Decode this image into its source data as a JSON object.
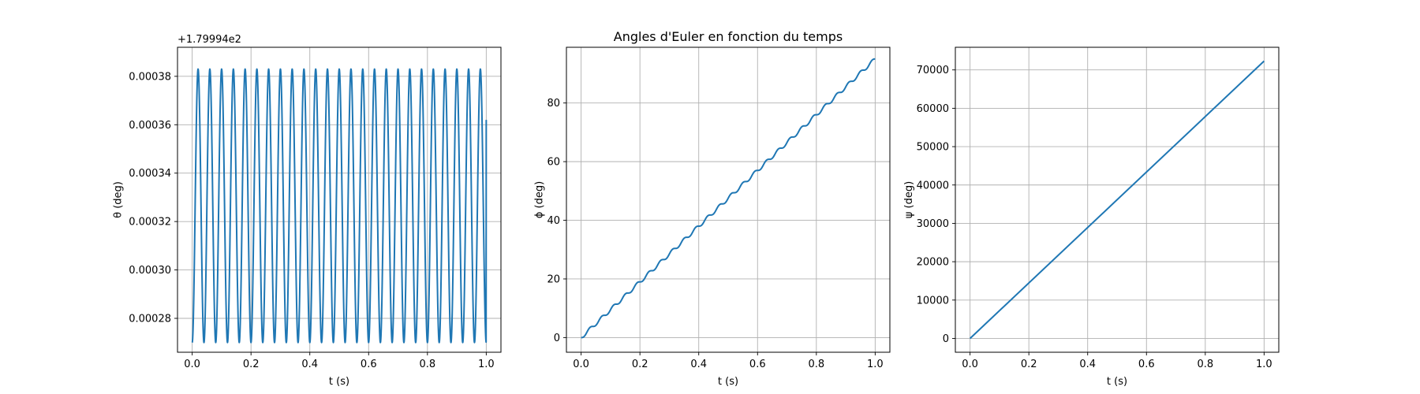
{
  "figure": {
    "title": "Angles d'Euler en fonction du temps",
    "line_color": "#1f77b4"
  },
  "chart_data": [
    {
      "type": "line",
      "title": "",
      "xlabel": "t (s)",
      "ylabel": "θ (deg)",
      "offset_text": "+1.79994e2",
      "xlim": [
        -0.05,
        1.05
      ],
      "ylim": [
        0.000266,
        0.000392
      ],
      "xticks": [
        0.0,
        0.2,
        0.4,
        0.6,
        0.8,
        1.0
      ],
      "xtick_labels": [
        "0.0",
        "0.2",
        "0.4",
        "0.6",
        "0.8",
        "1.0"
      ],
      "yticks": [
        0.00028,
        0.0003,
        0.00032,
        0.00034,
        0.00036,
        0.00038
      ],
      "ytick_labels": [
        "0.00028",
        "0.00030",
        "0.00032",
        "0.00034",
        "0.00036",
        "0.00038"
      ],
      "grid": true,
      "series": [
        {
          "function": "oscillation",
          "min": 0.00027,
          "max": 0.000383,
          "cycles": 25,
          "x_start": 0.0,
          "x_end": 1.0,
          "end_value": 0.000362
        }
      ]
    },
    {
      "type": "line",
      "title": "Angles d'Euler en fonction du temps",
      "xlabel": "t (s)",
      "ylabel": "ϕ (deg)",
      "xlim": [
        -0.05,
        1.05
      ],
      "ylim": [
        -5,
        99
      ],
      "xticks": [
        0.0,
        0.2,
        0.4,
        0.6,
        0.8,
        1.0
      ],
      "xtick_labels": [
        "0.0",
        "0.2",
        "0.4",
        "0.6",
        "0.8",
        "1.0"
      ],
      "yticks": [
        0,
        20,
        40,
        60,
        80
      ],
      "ytick_labels": [
        "0",
        "20",
        "40",
        "60",
        "80"
      ],
      "grid": true,
      "series": [
        {
          "function": "ramp_wobble",
          "start": 0,
          "end": 95,
          "cycles": 25,
          "x_start": 0.0,
          "x_end": 1.0
        }
      ]
    },
    {
      "type": "line",
      "title": "",
      "xlabel": "t (s)",
      "ylabel": "ψ (deg)",
      "xlim": [
        -0.05,
        1.05
      ],
      "ylim": [
        -3600,
        75900
      ],
      "xticks": [
        0.0,
        0.2,
        0.4,
        0.6,
        0.8,
        1.0
      ],
      "xtick_labels": [
        "0.0",
        "0.2",
        "0.4",
        "0.6",
        "0.8",
        "1.0"
      ],
      "yticks": [
        0,
        10000,
        20000,
        30000,
        40000,
        50000,
        60000,
        70000
      ],
      "ytick_labels": [
        "0",
        "10000",
        "20000",
        "30000",
        "40000",
        "50000",
        "60000",
        "70000"
      ],
      "grid": true,
      "series": [
        {
          "function": "linear",
          "x": [
            0.0,
            1.0
          ],
          "y": [
            0,
            72300
          ]
        }
      ]
    }
  ]
}
